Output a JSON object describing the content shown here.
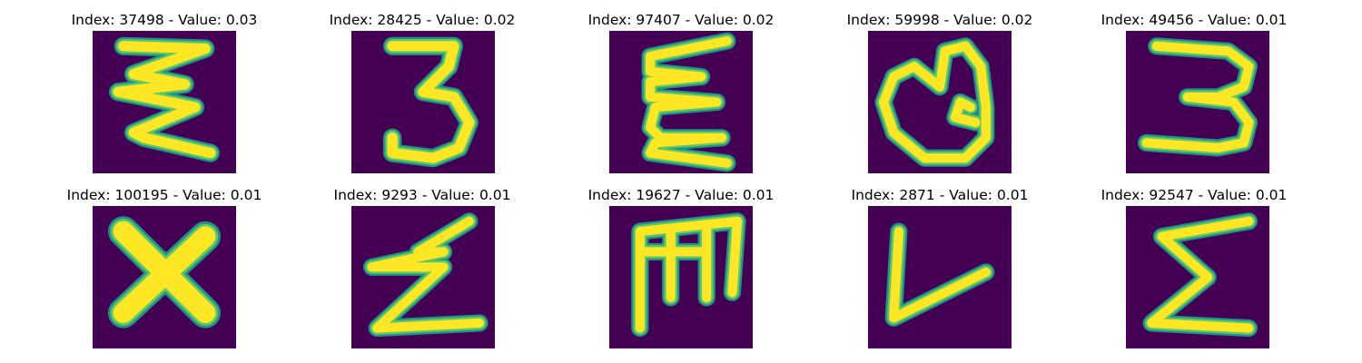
{
  "colors": {
    "background": "#440154",
    "stroke_edge": "#21918c",
    "stroke_mid": "#5ec962",
    "stroke_core": "#fde725"
  },
  "panels": [
    {
      "title": "Index: 37498 - Value: 0.03",
      "glyph": "stacked-zigzag"
    },
    {
      "title": "Index: 28425 - Value: 0.02",
      "glyph": "three"
    },
    {
      "title": "Index: 97407 - Value: 0.02",
      "glyph": "epsilon-wave"
    },
    {
      "title": "Index: 59998 - Value: 0.02",
      "glyph": "loop-q"
    },
    {
      "title": "Index: 49456 - Value: 0.01",
      "glyph": "wide-three"
    },
    {
      "title": "Index: 100195 - Value: 0.01",
      "glyph": "x"
    },
    {
      "title": "Index: 9293 - Value: 0.01",
      "glyph": "z-bolt"
    },
    {
      "title": "Index: 19627 - Value: 0.01",
      "glyph": "comb-m"
    },
    {
      "title": "Index: 2871 - Value: 0.01",
      "glyph": "v-check"
    },
    {
      "title": "Index: 92547 - Value: 0.01",
      "glyph": "sigma"
    }
  ]
}
